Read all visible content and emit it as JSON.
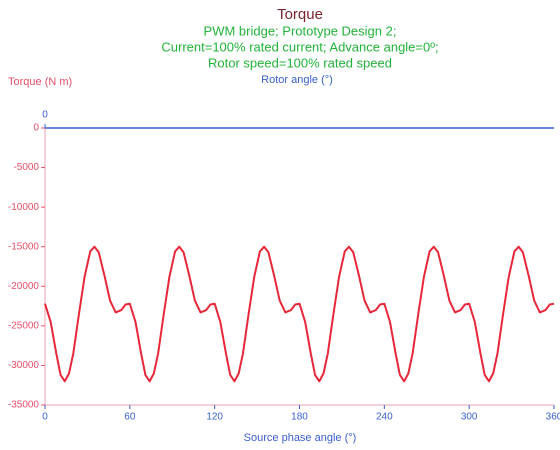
{
  "chart_data": {
    "type": "line",
    "title": "Torque",
    "subtitle": [
      "PWM bridge; Prototype Design 2;",
      "Current=100% rated current; Advance angle=0º;",
      "Rotor speed=100% rated speed"
    ],
    "ylabel": "Torque (N m)",
    "xlabel": "Source phase angle (°)",
    "x2label": "Rotor angle (°)",
    "x2ticks": [
      0
    ],
    "xlim": [
      0,
      360
    ],
    "xticks": [
      0,
      60,
      120,
      180,
      240,
      300,
      360
    ],
    "ylim": [
      -35000,
      0
    ],
    "yticks": [
      0,
      -5000,
      -10000,
      -15000,
      -20000,
      -25000,
      -30000,
      -35000
    ],
    "grid": false,
    "series": [
      {
        "name": "Torque",
        "color": "#e8283a",
        "x": [
          0,
          4,
          8,
          11,
          14,
          17,
          20,
          24,
          28,
          32,
          35,
          38,
          42,
          46,
          50,
          54,
          57,
          60,
          64,
          68,
          71,
          74,
          77,
          80,
          84,
          88,
          92,
          95,
          98,
          102,
          106,
          110,
          114,
          117,
          120,
          124,
          128,
          131,
          134,
          137,
          140,
          144,
          148,
          152,
          155,
          158,
          162,
          166,
          170,
          174,
          177,
          180,
          184,
          188,
          191,
          194,
          197,
          200,
          204,
          208,
          212,
          215,
          218,
          222,
          226,
          230,
          234,
          237,
          240,
          244,
          248,
          251,
          254,
          257,
          260,
          264,
          268,
          272,
          275,
          278,
          282,
          286,
          290,
          294,
          297,
          300,
          304,
          308,
          311,
          314,
          317,
          320,
          324,
          328,
          332,
          335,
          338,
          342,
          346,
          350,
          354,
          357,
          360
        ],
        "values": [
          -22200,
          -24500,
          -28500,
          -31200,
          -32000,
          -31000,
          -28500,
          -23500,
          -18800,
          -15600,
          -15000,
          -15700,
          -18600,
          -21800,
          -23300,
          -23000,
          -22300,
          -22200,
          -24500,
          -28500,
          -31200,
          -32000,
          -31000,
          -28500,
          -23500,
          -18800,
          -15600,
          -15000,
          -15700,
          -18600,
          -21800,
          -23300,
          -23000,
          -22300,
          -22200,
          -24500,
          -28500,
          -31200,
          -32000,
          -31000,
          -28500,
          -23500,
          -18800,
          -15600,
          -15000,
          -15700,
          -18600,
          -21800,
          -23300,
          -23000,
          -22300,
          -22200,
          -24500,
          -28500,
          -31200,
          -32000,
          -31000,
          -28500,
          -23500,
          -18800,
          -15600,
          -15000,
          -15700,
          -18600,
          -21800,
          -23300,
          -23000,
          -22300,
          -22200,
          -24500,
          -28500,
          -31200,
          -32000,
          -31000,
          -28500,
          -23500,
          -18800,
          -15600,
          -15000,
          -15700,
          -18600,
          -21800,
          -23300,
          -23000,
          -22300,
          -22200,
          -24500,
          -28500,
          -31200,
          -32000,
          -31000,
          -28500,
          -23500,
          -18800,
          -15600,
          -15000,
          -15700,
          -18600,
          -21800,
          -23300,
          -23000,
          -22300,
          -22200
        ]
      }
    ]
  }
}
